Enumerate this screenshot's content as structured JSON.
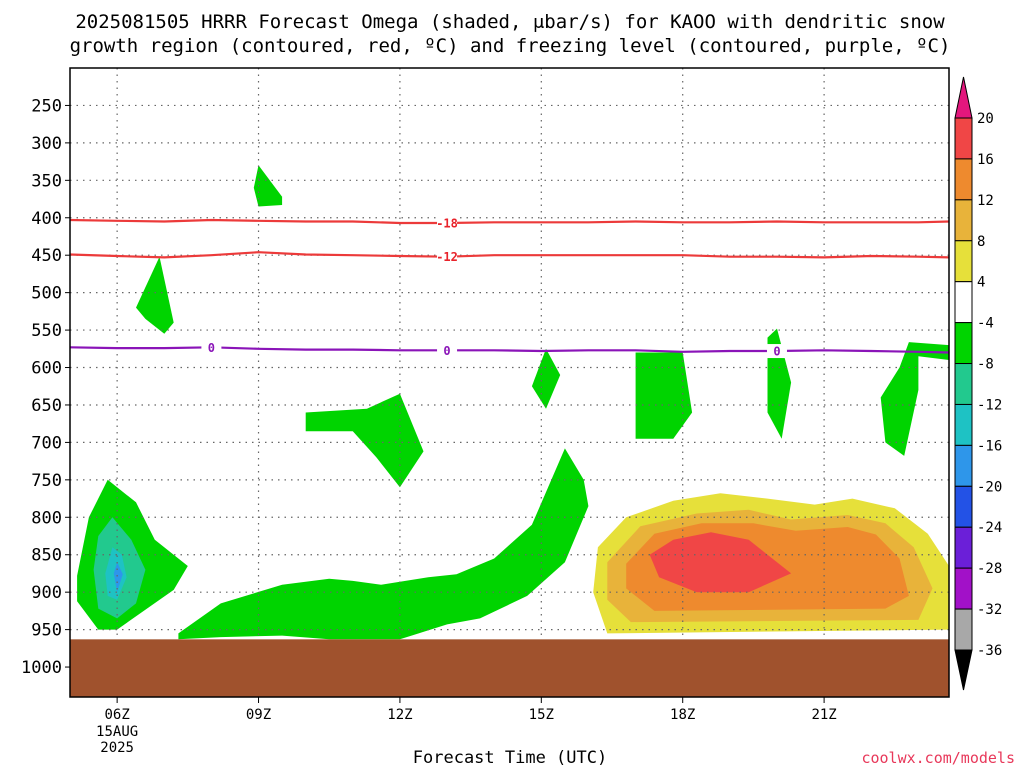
{
  "title": {
    "line1": "2025081505 HRRR Forecast Omega (shaded, μbar/s) for KAOO with dendritic snow",
    "line2": "growth region (contoured, red, ºC) and freezing level (contoured, purple, ºC)"
  },
  "credit": "coolwx.com/models",
  "chart_data": {
    "type": "heatmap",
    "title": "2025081505 HRRR Forecast Omega (shaded, μbar/s) for KAOO with dendritic snow growth region (contoured, red, ºC) and freezing level (contoured, purple, ºC)",
    "xlabel": "Forecast Time (UTC)",
    "ylabel": "",
    "x_range_hours_utc": [
      5.0,
      23.65
    ],
    "y_range_hpa": [
      1040,
      200
    ],
    "y_ticks": [
      250,
      300,
      350,
      400,
      450,
      500,
      550,
      600,
      650,
      700,
      750,
      800,
      850,
      900,
      950,
      1000
    ],
    "x_ticks": [
      {
        "hour": 6,
        "label": "06Z",
        "sub": [
          "15AUG",
          "2025"
        ]
      },
      {
        "hour": 9,
        "label": "09Z",
        "sub": []
      },
      {
        "hour": 12,
        "label": "12Z",
        "sub": []
      },
      {
        "hour": 15,
        "label": "15Z",
        "sub": []
      },
      {
        "hour": 18,
        "label": "18Z",
        "sub": []
      },
      {
        "hour": 21,
        "label": "21Z",
        "sub": []
      }
    ],
    "grid": true,
    "ground_pressure_hpa": 963,
    "colorbar": {
      "levels": [
        20,
        16,
        12,
        8,
        4,
        -4,
        -8,
        -12,
        -16,
        -20,
        -24,
        -28,
        -32,
        -36
      ],
      "colors": [
        "#e3177d",
        "#f04646",
        "#ee8a2e",
        "#e8b33a",
        "#e6e03a",
        "#ffffff",
        "#00d400",
        "#22c98e",
        "#1ec2c4",
        "#2e96ea",
        "#2352e6",
        "#6b1fd8",
        "#a211c8",
        "#a8a8a8",
        "#000000"
      ]
    },
    "contours": [
      {
        "name": "-18",
        "kind": "dendritic",
        "points": [
          [
            5.0,
            403
          ],
          [
            6.0,
            404
          ],
          [
            7.0,
            405
          ],
          [
            8.0,
            403
          ],
          [
            9.0,
            404
          ],
          [
            10.0,
            405
          ],
          [
            11.0,
            405
          ],
          [
            12.0,
            407
          ],
          [
            13.0,
            407
          ],
          [
            14.0,
            406
          ],
          [
            15.0,
            406
          ],
          [
            16.0,
            406
          ],
          [
            17.0,
            405
          ],
          [
            18.0,
            406
          ],
          [
            19.0,
            406
          ],
          [
            20.0,
            405
          ],
          [
            21.0,
            406
          ],
          [
            22.0,
            406
          ],
          [
            23.0,
            406
          ],
          [
            23.65,
            405
          ]
        ],
        "labels": [
          [
            13.0,
            407,
            "-18"
          ]
        ]
      },
      {
        "name": "-12",
        "kind": "dendritic",
        "points": [
          [
            5.0,
            449
          ],
          [
            6.0,
            451
          ],
          [
            7.0,
            453
          ],
          [
            8.0,
            450
          ],
          [
            9.0,
            446
          ],
          [
            10.0,
            449
          ],
          [
            11.0,
            450
          ],
          [
            12.0,
            451
          ],
          [
            13.0,
            452
          ],
          [
            14.0,
            450
          ],
          [
            15.0,
            450
          ],
          [
            16.0,
            450
          ],
          [
            17.0,
            450
          ],
          [
            18.0,
            450
          ],
          [
            19.0,
            452
          ],
          [
            20.0,
            452
          ],
          [
            21.0,
            453
          ],
          [
            22.0,
            451
          ],
          [
            23.0,
            452
          ],
          [
            23.65,
            453
          ]
        ],
        "labels": [
          [
            13.0,
            452,
            "-12"
          ]
        ]
      },
      {
        "name": "0",
        "kind": "freezing",
        "points": [
          [
            5.0,
            573
          ],
          [
            6.0,
            574
          ],
          [
            7.0,
            574
          ],
          [
            8.0,
            573
          ],
          [
            9.0,
            575
          ],
          [
            10.0,
            576
          ],
          [
            11.0,
            576
          ],
          [
            12.0,
            577
          ],
          [
            13.0,
            577
          ],
          [
            14.0,
            577
          ],
          [
            15.0,
            578
          ],
          [
            16.0,
            577
          ],
          [
            17.0,
            577
          ],
          [
            18.0,
            579
          ],
          [
            19.0,
            578
          ],
          [
            20.0,
            578
          ],
          [
            21.0,
            577
          ],
          [
            22.0,
            578
          ],
          [
            23.0,
            579
          ],
          [
            23.65,
            580
          ]
        ],
        "labels": [
          [
            8.0,
            573,
            "0"
          ],
          [
            13.0,
            577,
            "0"
          ],
          [
            20.0,
            578,
            "0"
          ]
        ]
      }
    ],
    "omega_regions": [
      {
        "value": -6,
        "points": [
          [
            9.0,
            330
          ],
          [
            9.5,
            372
          ],
          [
            9.5,
            383
          ],
          [
            9.0,
            385
          ],
          [
            8.9,
            360
          ]
        ]
      },
      {
        "value": -6,
        "points": [
          [
            6.4,
            520
          ],
          [
            6.9,
            452
          ],
          [
            7.2,
            540
          ],
          [
            7.0,
            555
          ],
          [
            6.6,
            535
          ]
        ]
      },
      {
        "value": -6,
        "points": [
          [
            10.0,
            660
          ],
          [
            10.0,
            685
          ],
          [
            11.0,
            685
          ],
          [
            11.5,
            720
          ],
          [
            12.0,
            760
          ],
          [
            12.5,
            712
          ],
          [
            12.0,
            635
          ],
          [
            11.3,
            655
          ]
        ]
      },
      {
        "value": -6,
        "points": [
          [
            14.8,
            625
          ],
          [
            15.1,
            575
          ],
          [
            15.4,
            610
          ],
          [
            15.1,
            655
          ]
        ]
      },
      {
        "value": -6,
        "points": [
          [
            17.0,
            580
          ],
          [
            17.0,
            695
          ],
          [
            17.8,
            695
          ],
          [
            18.2,
            660
          ],
          [
            18.0,
            580
          ]
        ]
      },
      {
        "value": -6,
        "points": [
          [
            19.8,
            560
          ],
          [
            20.0,
            548
          ],
          [
            20.3,
            620
          ],
          [
            20.1,
            695
          ],
          [
            19.8,
            660
          ]
        ]
      },
      {
        "value": -6,
        "points": [
          [
            23.0,
            585
          ],
          [
            23.65,
            590
          ],
          [
            23.65,
            570
          ],
          [
            22.8,
            566
          ],
          [
            22.6,
            600
          ],
          [
            22.2,
            640
          ],
          [
            22.3,
            700
          ],
          [
            22.7,
            718
          ],
          [
            23.0,
            630
          ]
        ]
      },
      {
        "value": -6,
        "points": [
          [
            5.15,
            878
          ],
          [
            5.4,
            800
          ],
          [
            5.8,
            750
          ],
          [
            6.4,
            780
          ],
          [
            6.8,
            830
          ],
          [
            7.5,
            865
          ],
          [
            7.2,
            897
          ],
          [
            6.0,
            950
          ],
          [
            5.6,
            950
          ],
          [
            5.15,
            912
          ]
        ]
      },
      {
        "value": -6,
        "points": [
          [
            7.0,
            950
          ],
          [
            7.5,
            955
          ],
          [
            6.5,
            945
          ]
        ]
      },
      {
        "value": -6,
        "points": [
          [
            7.3,
            955
          ],
          [
            8.2,
            915
          ],
          [
            9.5,
            890
          ],
          [
            10.5,
            882
          ],
          [
            11.0,
            885
          ],
          [
            11.6,
            890
          ],
          [
            12.6,
            880
          ],
          [
            13.2,
            876
          ],
          [
            14.0,
            855
          ],
          [
            14.8,
            810
          ],
          [
            15.5,
            708
          ],
          [
            15.9,
            750
          ],
          [
            16.0,
            785
          ],
          [
            15.5,
            860
          ],
          [
            14.7,
            905
          ],
          [
            13.7,
            935
          ],
          [
            13.0,
            943
          ],
          [
            12.0,
            963
          ],
          [
            10.5,
            963
          ],
          [
            9.5,
            958
          ],
          [
            8.2,
            960
          ],
          [
            7.3,
            963
          ]
        ]
      },
      {
        "value": -10,
        "points": [
          [
            5.5,
            870
          ],
          [
            5.6,
            825
          ],
          [
            5.9,
            800
          ],
          [
            6.3,
            830
          ],
          [
            6.6,
            870
          ],
          [
            6.4,
            915
          ],
          [
            6.0,
            935
          ],
          [
            5.6,
            922
          ]
        ]
      },
      {
        "value": -14,
        "points": [
          [
            5.75,
            875
          ],
          [
            5.9,
            840
          ],
          [
            6.1,
            850
          ],
          [
            6.2,
            880
          ],
          [
            6.0,
            910
          ],
          [
            5.8,
            905
          ]
        ]
      },
      {
        "value": -18,
        "points": [
          [
            5.93,
            875
          ],
          [
            6.0,
            860
          ],
          [
            6.12,
            876
          ],
          [
            6.0,
            900
          ]
        ]
      },
      {
        "value": 6,
        "points": [
          [
            16.2,
            840
          ],
          [
            16.8,
            800
          ],
          [
            17.8,
            778
          ],
          [
            18.8,
            768
          ],
          [
            19.8,
            775
          ],
          [
            20.8,
            783
          ],
          [
            21.6,
            775
          ],
          [
            22.5,
            788
          ],
          [
            23.2,
            822
          ],
          [
            23.65,
            865
          ],
          [
            23.65,
            950
          ],
          [
            16.4,
            955
          ],
          [
            16.1,
            900
          ]
        ]
      },
      {
        "value": 10,
        "points": [
          [
            16.4,
            860
          ],
          [
            17.1,
            812
          ],
          [
            18.3,
            795
          ],
          [
            19.4,
            790
          ],
          [
            20.3,
            803
          ],
          [
            21.5,
            797
          ],
          [
            22.3,
            808
          ],
          [
            22.9,
            840
          ],
          [
            23.3,
            895
          ],
          [
            23.0,
            937
          ],
          [
            16.9,
            940
          ],
          [
            16.4,
            910
          ]
        ]
      },
      {
        "value": 14,
        "points": [
          [
            16.8,
            862
          ],
          [
            17.4,
            822
          ],
          [
            18.4,
            808
          ],
          [
            19.5,
            808
          ],
          [
            20.4,
            818
          ],
          [
            21.5,
            813
          ],
          [
            22.1,
            823
          ],
          [
            22.6,
            855
          ],
          [
            22.8,
            905
          ],
          [
            22.3,
            922
          ],
          [
            17.4,
            925
          ],
          [
            16.8,
            895
          ]
        ]
      },
      {
        "value": 18,
        "points": [
          [
            17.3,
            850
          ],
          [
            17.8,
            830
          ],
          [
            18.6,
            820
          ],
          [
            19.4,
            830
          ],
          [
            20.3,
            875
          ],
          [
            19.4,
            900
          ],
          [
            18.3,
            900
          ],
          [
            17.5,
            880
          ]
        ]
      }
    ]
  }
}
